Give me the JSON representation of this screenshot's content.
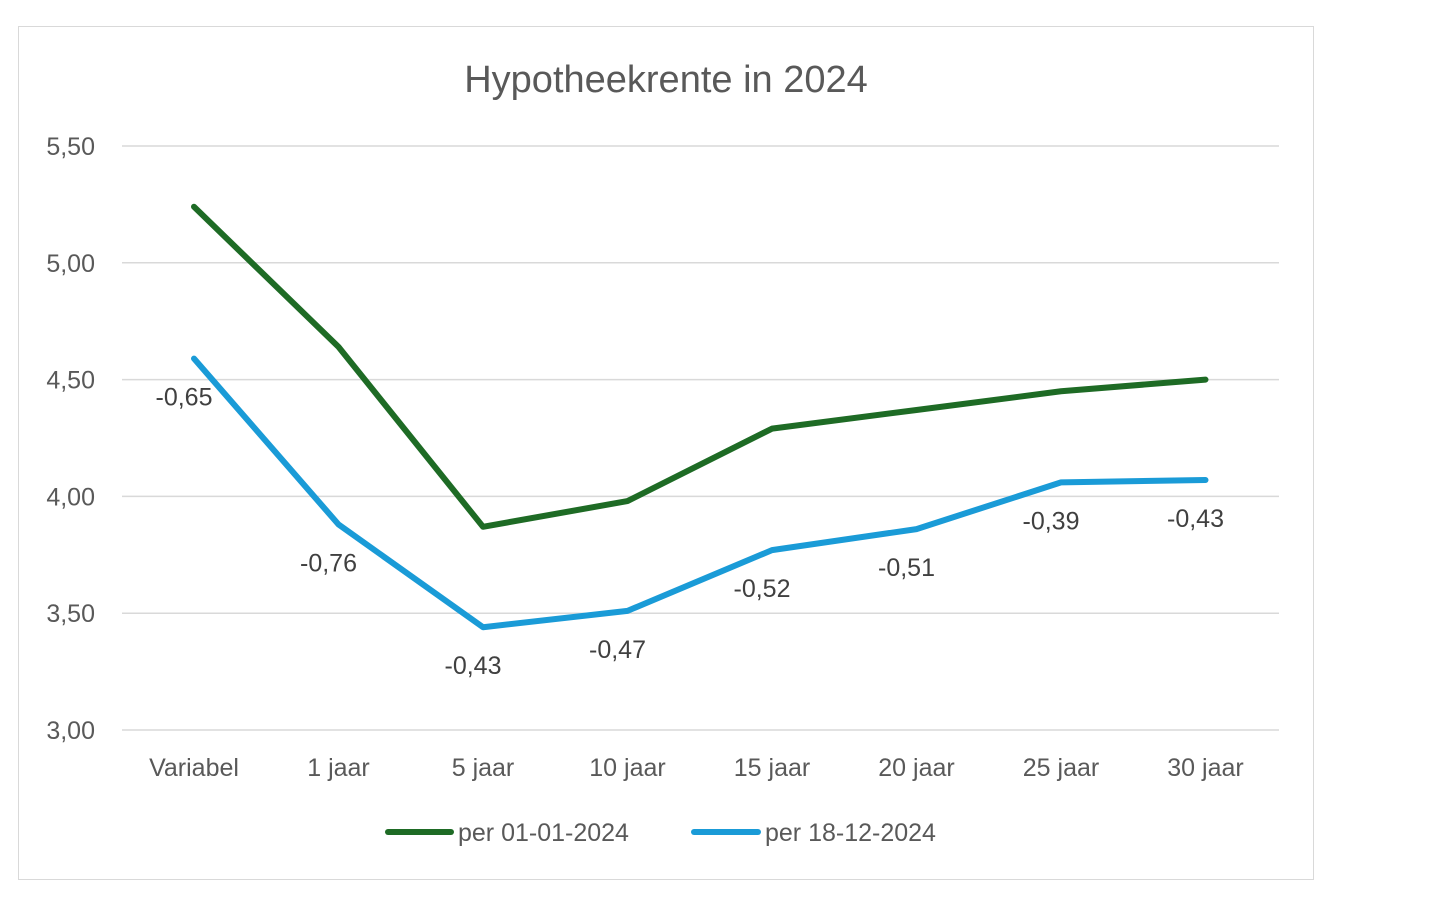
{
  "chart_data": {
    "type": "line",
    "title": "Hypotheekrente in 2024",
    "xlabel": "",
    "ylabel": "",
    "categories": [
      "Variabel",
      "1 jaar",
      "5 jaar",
      "10 jaar",
      "15 jaar",
      "20 jaar",
      "25 jaar",
      "30 jaar"
    ],
    "ylim": [
      3.0,
      5.5
    ],
    "yticks": [
      3.0,
      3.5,
      4.0,
      4.5,
      5.0,
      5.5
    ],
    "ytick_labels": [
      "3,00",
      "3,50",
      "4,00",
      "4,50",
      "5,00",
      "5,50"
    ],
    "grid": true,
    "legend_position": "bottom",
    "series": [
      {
        "name": "per 01-01-2024",
        "color": "#1e6b25",
        "values": [
          5.24,
          4.64,
          3.87,
          3.98,
          4.29,
          4.37,
          4.45,
          4.5
        ]
      },
      {
        "name": "per 18-12-2024",
        "color": "#1a9bd7",
        "values": [
          4.59,
          3.88,
          3.44,
          3.51,
          3.77,
          3.86,
          4.06,
          4.07
        ]
      }
    ],
    "data_labels": [
      "-0,65",
      "-0,76",
      "-0,43",
      "-0,47",
      "-0,52",
      "-0,51",
      "-0,39",
      "-0,43"
    ]
  }
}
